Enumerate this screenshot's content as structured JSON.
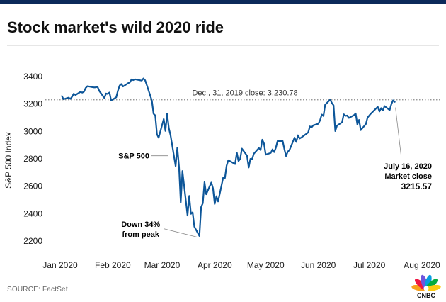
{
  "header": {
    "title": "Stock market's wild 2020 ride"
  },
  "footer": {
    "source": "SOURCE: FactSet",
    "logo_text": "CNBC"
  },
  "colors": {
    "line": "#0d5699",
    "text": "#1a1a1a",
    "reference": "#8a8a8a",
    "header_bar": "#0c2a5a"
  },
  "chart_data": {
    "type": "line",
    "ylabel": "S&P 500 Index",
    "xlabel": "",
    "title": "Stock market's wild 2020 ride",
    "ylim": [
      2200,
      3400
    ],
    "yticks": [
      2200,
      2400,
      2600,
      2800,
      3000,
      3200,
      3400
    ],
    "ytick_labels": [
      "2200",
      "2400",
      "2600",
      "2800",
      "3000",
      "3200",
      "3400"
    ],
    "xticks": [
      {
        "label": "Jan 2020",
        "x": "2020-01-01"
      },
      {
        "label": "Feb 2020",
        "x": "2020-02-01"
      },
      {
        "label": "Mar 2020",
        "x": "2020-03-01"
      },
      {
        "label": "Apr 2020",
        "x": "2020-04-01"
      },
      {
        "label": "May 2020",
        "x": "2020-05-01"
      },
      {
        "label": "Jun 2020",
        "x": "2020-06-01"
      },
      {
        "label": "Jul 2020",
        "x": "2020-07-01"
      },
      {
        "label": "Aug 2020",
        "x": "2020-08-01"
      }
    ],
    "reference_line": {
      "y": 3230.78,
      "label": "Dec., 31, 2019 close:  3,230.78"
    },
    "series": [
      {
        "name": "S&P 500",
        "x": [
          "2020-01-02",
          "2020-01-03",
          "2020-01-06",
          "2020-01-07",
          "2020-01-08",
          "2020-01-09",
          "2020-01-10",
          "2020-01-13",
          "2020-01-14",
          "2020-01-15",
          "2020-01-16",
          "2020-01-17",
          "2020-01-21",
          "2020-01-22",
          "2020-01-23",
          "2020-01-24",
          "2020-01-27",
          "2020-01-28",
          "2020-01-29",
          "2020-01-30",
          "2020-01-31",
          "2020-02-03",
          "2020-02-04",
          "2020-02-05",
          "2020-02-06",
          "2020-02-07",
          "2020-02-10",
          "2020-02-11",
          "2020-02-12",
          "2020-02-13",
          "2020-02-14",
          "2020-02-18",
          "2020-02-19",
          "2020-02-20",
          "2020-02-21",
          "2020-02-24",
          "2020-02-25",
          "2020-02-26",
          "2020-02-27",
          "2020-02-28",
          "2020-03-02",
          "2020-03-03",
          "2020-03-04",
          "2020-03-05",
          "2020-03-06",
          "2020-03-09",
          "2020-03-10",
          "2020-03-11",
          "2020-03-12",
          "2020-03-13",
          "2020-03-16",
          "2020-03-17",
          "2020-03-18",
          "2020-03-19",
          "2020-03-20",
          "2020-03-23",
          "2020-03-24",
          "2020-03-25",
          "2020-03-26",
          "2020-03-27",
          "2020-03-30",
          "2020-03-31",
          "2020-04-01",
          "2020-04-02",
          "2020-04-03",
          "2020-04-06",
          "2020-04-07",
          "2020-04-08",
          "2020-04-09",
          "2020-04-13",
          "2020-04-14",
          "2020-04-15",
          "2020-04-16",
          "2020-04-17",
          "2020-04-20",
          "2020-04-21",
          "2020-04-22",
          "2020-04-23",
          "2020-04-24",
          "2020-04-27",
          "2020-04-28",
          "2020-04-29",
          "2020-04-30",
          "2020-05-01",
          "2020-05-04",
          "2020-05-05",
          "2020-05-06",
          "2020-05-07",
          "2020-05-08",
          "2020-05-11",
          "2020-05-12",
          "2020-05-13",
          "2020-05-14",
          "2020-05-15",
          "2020-05-18",
          "2020-05-19",
          "2020-05-20",
          "2020-05-21",
          "2020-05-22",
          "2020-05-26",
          "2020-05-27",
          "2020-05-28",
          "2020-05-29",
          "2020-06-01",
          "2020-06-02",
          "2020-06-03",
          "2020-06-04",
          "2020-06-05",
          "2020-06-08",
          "2020-06-09",
          "2020-06-10",
          "2020-06-11",
          "2020-06-12",
          "2020-06-15",
          "2020-06-16",
          "2020-06-17",
          "2020-06-18",
          "2020-06-19",
          "2020-06-22",
          "2020-06-23",
          "2020-06-24",
          "2020-06-25",
          "2020-06-26",
          "2020-06-29",
          "2020-06-30",
          "2020-07-01",
          "2020-07-02",
          "2020-07-06",
          "2020-07-07",
          "2020-07-08",
          "2020-07-09",
          "2020-07-10",
          "2020-07-13",
          "2020-07-14",
          "2020-07-15",
          "2020-07-16"
        ],
        "values": [
          3257.85,
          3234.85,
          3246.28,
          3237.18,
          3253.05,
          3274.7,
          3265.35,
          3288.13,
          3283.15,
          3289.29,
          3316.81,
          3329.62,
          3320.79,
          3321.75,
          3325.54,
          3295.47,
          3243.63,
          3276.24,
          3273.4,
          3283.66,
          3225.52,
          3248.92,
          3297.59,
          3334.69,
          3345.78,
          3327.71,
          3352.09,
          3357.75,
          3379.45,
          3373.94,
          3380.16,
          3370.29,
          3386.15,
          3373.23,
          3337.75,
          3225.89,
          3128.21,
          3116.39,
          2978.76,
          2954.22,
          3090.23,
          3003.37,
          3130.12,
          3023.94,
          2972.37,
          2746.56,
          2882.23,
          2741.38,
          2480.64,
          2711.02,
          2386.13,
          2529.19,
          2398.1,
          2409.39,
          2304.92,
          2237.4,
          2447.33,
          2475.56,
          2630.07,
          2541.47,
          2626.65,
          2584.59,
          2470.5,
          2526.9,
          2488.65,
          2663.68,
          2659.41,
          2749.98,
          2789.82,
          2761.63,
          2846.06,
          2783.36,
          2799.55,
          2874.56,
          2823.16,
          2736.56,
          2799.31,
          2797.8,
          2836.74,
          2878.48,
          2863.39,
          2939.51,
          2912.43,
          2830.71,
          2842.74,
          2868.44,
          2848.42,
          2881.19,
          2929.8,
          2930.19,
          2870.12,
          2820.0,
          2852.5,
          2863.7,
          2953.91,
          2922.94,
          2971.61,
          2948.51,
          2955.45,
          2991.77,
          3036.13,
          3029.73,
          3044.31,
          3055.73,
          3080.82,
          3122.87,
          3112.35,
          3193.93,
          3232.39,
          3207.18,
          3190.14,
          3002.1,
          3041.31,
          3066.59,
          3124.74,
          3113.49,
          3115.34,
          3097.74,
          3117.86,
          3131.29,
          3050.33,
          3083.76,
          3009.05,
          3053.24,
          3100.29,
          3115.86,
          3130.01,
          3179.72,
          3145.32,
          3169.94,
          3152.05,
          3185.04,
          3155.22,
          3197.52,
          3226.56,
          3215.57
        ]
      }
    ],
    "annotations": [
      {
        "text": "S&P 500",
        "target": "2020-03-06"
      },
      {
        "text": "Down 34% from peak",
        "line1": "Down 34%",
        "line2": "from peak",
        "target": "2020-03-23"
      },
      {
        "text": "July 16, 2020 Market close 3215.57",
        "line1": "July 16, 2020",
        "line2": "Market close",
        "line3": "3215.57",
        "target": "2020-07-16"
      }
    ],
    "grid": false,
    "legend": "none"
  }
}
